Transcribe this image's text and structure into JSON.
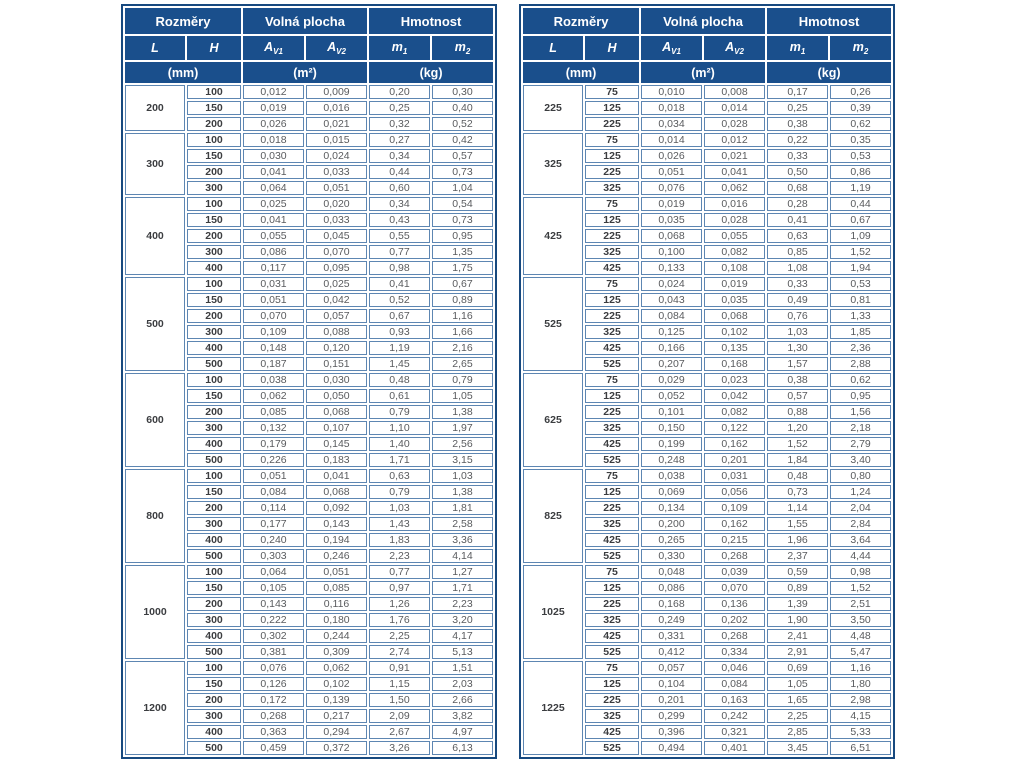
{
  "colors": {
    "header_bg": "#1a4f8c",
    "header_text": "#ffffff",
    "cell_border": "#5d86b2",
    "shaded_row_bg": "#c8daeb",
    "outer_border": "#17497f",
    "dimension_text": "#3b3d40",
    "value_text": "#595b5e",
    "page_bg": "#ffffff"
  },
  "header": {
    "groups": [
      {
        "label": "Rozměry",
        "span": 2
      },
      {
        "label": "Volná plocha",
        "span": 2
      },
      {
        "label": "Hmotnost",
        "span": 2
      }
    ],
    "columns": [
      {
        "base": "L",
        "sub": ""
      },
      {
        "base": "H",
        "sub": ""
      },
      {
        "base": "A",
        "sub": "V1"
      },
      {
        "base": "A",
        "sub": "V2"
      },
      {
        "base": "m",
        "sub": "1"
      },
      {
        "base": "m",
        "sub": "2"
      }
    ],
    "units": [
      {
        "label": "(mm)",
        "span": 2
      },
      {
        "label": "(m²)",
        "span": 2
      },
      {
        "label": "(kg)",
        "span": 2
      }
    ]
  },
  "tables": [
    {
      "id": "left",
      "groups": [
        {
          "l": "200",
          "shaded": false,
          "rows": [
            [
              "100",
              "0,012",
              "0,009",
              "0,20",
              "0,30"
            ],
            [
              "150",
              "0,019",
              "0,016",
              "0,25",
              "0,40"
            ],
            [
              "200",
              "0,026",
              "0,021",
              "0,32",
              "0,52"
            ]
          ]
        },
        {
          "l": "300",
          "shaded": true,
          "rows": [
            [
              "100",
              "0,018",
              "0,015",
              "0,27",
              "0,42"
            ],
            [
              "150",
              "0,030",
              "0,024",
              "0,34",
              "0,57"
            ],
            [
              "200",
              "0,041",
              "0,033",
              "0,44",
              "0,73"
            ],
            [
              "300",
              "0,064",
              "0,051",
              "0,60",
              "1,04"
            ]
          ]
        },
        {
          "l": "400",
          "shaded": false,
          "rows": [
            [
              "100",
              "0,025",
              "0,020",
              "0,34",
              "0,54"
            ],
            [
              "150",
              "0,041",
              "0,033",
              "0,43",
              "0,73"
            ],
            [
              "200",
              "0,055",
              "0,045",
              "0,55",
              "0,95"
            ],
            [
              "300",
              "0,086",
              "0,070",
              "0,77",
              "1,35"
            ],
            [
              "400",
              "0,117",
              "0,095",
              "0,98",
              "1,75"
            ]
          ]
        },
        {
          "l": "500",
          "shaded": true,
          "rows": [
            [
              "100",
              "0,031",
              "0,025",
              "0,41",
              "0,67"
            ],
            [
              "150",
              "0,051",
              "0,042",
              "0,52",
              "0,89"
            ],
            [
              "200",
              "0,070",
              "0,057",
              "0,67",
              "1,16"
            ],
            [
              "300",
              "0,109",
              "0,088",
              "0,93",
              "1,66"
            ],
            [
              "400",
              "0,148",
              "0,120",
              "1,19",
              "2,16"
            ],
            [
              "500",
              "0,187",
              "0,151",
              "1,45",
              "2,65"
            ]
          ]
        },
        {
          "l": "600",
          "shaded": false,
          "rows": [
            [
              "100",
              "0,038",
              "0,030",
              "0,48",
              "0,79"
            ],
            [
              "150",
              "0,062",
              "0,050",
              "0,61",
              "1,05"
            ],
            [
              "200",
              "0,085",
              "0,068",
              "0,79",
              "1,38"
            ],
            [
              "300",
              "0,132",
              "0,107",
              "1,10",
              "1,97"
            ],
            [
              "400",
              "0,179",
              "0,145",
              "1,40",
              "2,56"
            ],
            [
              "500",
              "0,226",
              "0,183",
              "1,71",
              "3,15"
            ]
          ]
        },
        {
          "l": "800",
          "shaded": true,
          "rows": [
            [
              "100",
              "0,051",
              "0,041",
              "0,63",
              "1,03"
            ],
            [
              "150",
              "0,084",
              "0,068",
              "0,79",
              "1,38"
            ],
            [
              "200",
              "0,114",
              "0,092",
              "1,03",
              "1,81"
            ],
            [
              "300",
              "0,177",
              "0,143",
              "1,43",
              "2,58"
            ],
            [
              "400",
              "0,240",
              "0,194",
              "1,83",
              "3,36"
            ],
            [
              "500",
              "0,303",
              "0,246",
              "2,23",
              "4,14"
            ]
          ]
        },
        {
          "l": "1000",
          "shaded": false,
          "rows": [
            [
              "100",
              "0,064",
              "0,051",
              "0,77",
              "1,27"
            ],
            [
              "150",
              "0,105",
              "0,085",
              "0,97",
              "1,71"
            ],
            [
              "200",
              "0,143",
              "0,116",
              "1,26",
              "2,23"
            ],
            [
              "300",
              "0,222",
              "0,180",
              "1,76",
              "3,20"
            ],
            [
              "400",
              "0,302",
              "0,244",
              "2,25",
              "4,17"
            ],
            [
              "500",
              "0,381",
              "0,309",
              "2,74",
              "5,13"
            ]
          ]
        },
        {
          "l": "1200",
          "shaded": true,
          "rows": [
            [
              "100",
              "0,076",
              "0,062",
              "0,91",
              "1,51"
            ],
            [
              "150",
              "0,126",
              "0,102",
              "1,15",
              "2,03"
            ],
            [
              "200",
              "0,172",
              "0,139",
              "1,50",
              "2,66"
            ],
            [
              "300",
              "0,268",
              "0,217",
              "2,09",
              "3,82"
            ],
            [
              "400",
              "0,363",
              "0,294",
              "2,67",
              "4,97"
            ],
            [
              "500",
              "0,459",
              "0,372",
              "3,26",
              "6,13"
            ]
          ]
        }
      ]
    },
    {
      "id": "right",
      "groups": [
        {
          "l": "225",
          "shaded": false,
          "rows": [
            [
              "75",
              "0,010",
              "0,008",
              "0,17",
              "0,26"
            ],
            [
              "125",
              "0,018",
              "0,014",
              "0,25",
              "0,39"
            ],
            [
              "225",
              "0,034",
              "0,028",
              "0,38",
              "0,62"
            ]
          ]
        },
        {
          "l": "325",
          "shaded": true,
          "rows": [
            [
              "75",
              "0,014",
              "0,012",
              "0,22",
              "0,35"
            ],
            [
              "125",
              "0,026",
              "0,021",
              "0,33",
              "0,53"
            ],
            [
              "225",
              "0,051",
              "0,041",
              "0,50",
              "0,86"
            ],
            [
              "325",
              "0,076",
              "0,062",
              "0,68",
              "1,19"
            ]
          ]
        },
        {
          "l": "425",
          "shaded": false,
          "rows": [
            [
              "75",
              "0,019",
              "0,016",
              "0,28",
              "0,44"
            ],
            [
              "125",
              "0,035",
              "0,028",
              "0,41",
              "0,67"
            ],
            [
              "225",
              "0,068",
              "0,055",
              "0,63",
              "1,09"
            ],
            [
              "325",
              "0,100",
              "0,082",
              "0,85",
              "1,52"
            ],
            [
              "425",
              "0,133",
              "0,108",
              "1,08",
              "1,94"
            ]
          ]
        },
        {
          "l": "525",
          "shaded": true,
          "rows": [
            [
              "75",
              "0,024",
              "0,019",
              "0,33",
              "0,53"
            ],
            [
              "125",
              "0,043",
              "0,035",
              "0,49",
              "0,81"
            ],
            [
              "225",
              "0,084",
              "0,068",
              "0,76",
              "1,33"
            ],
            [
              "325",
              "0,125",
              "0,102",
              "1,03",
              "1,85"
            ],
            [
              "425",
              "0,166",
              "0,135",
              "1,30",
              "2,36"
            ],
            [
              "525",
              "0,207",
              "0,168",
              "1,57",
              "2,88"
            ]
          ]
        },
        {
          "l": "625",
          "shaded": false,
          "rows": [
            [
              "75",
              "0,029",
              "0,023",
              "0,38",
              "0,62"
            ],
            [
              "125",
              "0,052",
              "0,042",
              "0,57",
              "0,95"
            ],
            [
              "225",
              "0,101",
              "0,082",
              "0,88",
              "1,56"
            ],
            [
              "325",
              "0,150",
              "0,122",
              "1,20",
              "2,18"
            ],
            [
              "425",
              "0,199",
              "0,162",
              "1,52",
              "2,79"
            ],
            [
              "525",
              "0,248",
              "0,201",
              "1,84",
              "3,40"
            ]
          ]
        },
        {
          "l": "825",
          "shaded": true,
          "rows": [
            [
              "75",
              "0,038",
              "0,031",
              "0,48",
              "0,80"
            ],
            [
              "125",
              "0,069",
              "0,056",
              "0,73",
              "1,24"
            ],
            [
              "225",
              "0,134",
              "0,109",
              "1,14",
              "2,04"
            ],
            [
              "325",
              "0,200",
              "0,162",
              "1,55",
              "2,84"
            ],
            [
              "425",
              "0,265",
              "0,215",
              "1,96",
              "3,64"
            ],
            [
              "525",
              "0,330",
              "0,268",
              "2,37",
              "4,44"
            ]
          ]
        },
        {
          "l": "1025",
          "shaded": false,
          "rows": [
            [
              "75",
              "0,048",
              "0,039",
              "0,59",
              "0,98"
            ],
            [
              "125",
              "0,086",
              "0,070",
              "0,89",
              "1,52"
            ],
            [
              "225",
              "0,168",
              "0,136",
              "1,39",
              "2,51"
            ],
            [
              "325",
              "0,249",
              "0,202",
              "1,90",
              "3,50"
            ],
            [
              "425",
              "0,331",
              "0,268",
              "2,41",
              "4,48"
            ],
            [
              "525",
              "0,412",
              "0,334",
              "2,91",
              "5,47"
            ]
          ]
        },
        {
          "l": "1225",
          "shaded": true,
          "rows": [
            [
              "75",
              "0,057",
              "0,046",
              "0,69",
              "1,16"
            ],
            [
              "125",
              "0,104",
              "0,084",
              "1,05",
              "1,80"
            ],
            [
              "225",
              "0,201",
              "0,163",
              "1,65",
              "2,98"
            ],
            [
              "325",
              "0,299",
              "0,242",
              "2,25",
              "4,15"
            ],
            [
              "425",
              "0,396",
              "0,321",
              "2,85",
              "5,33"
            ],
            [
              "525",
              "0,494",
              "0,401",
              "3,45",
              "6,51"
            ]
          ]
        }
      ]
    }
  ]
}
